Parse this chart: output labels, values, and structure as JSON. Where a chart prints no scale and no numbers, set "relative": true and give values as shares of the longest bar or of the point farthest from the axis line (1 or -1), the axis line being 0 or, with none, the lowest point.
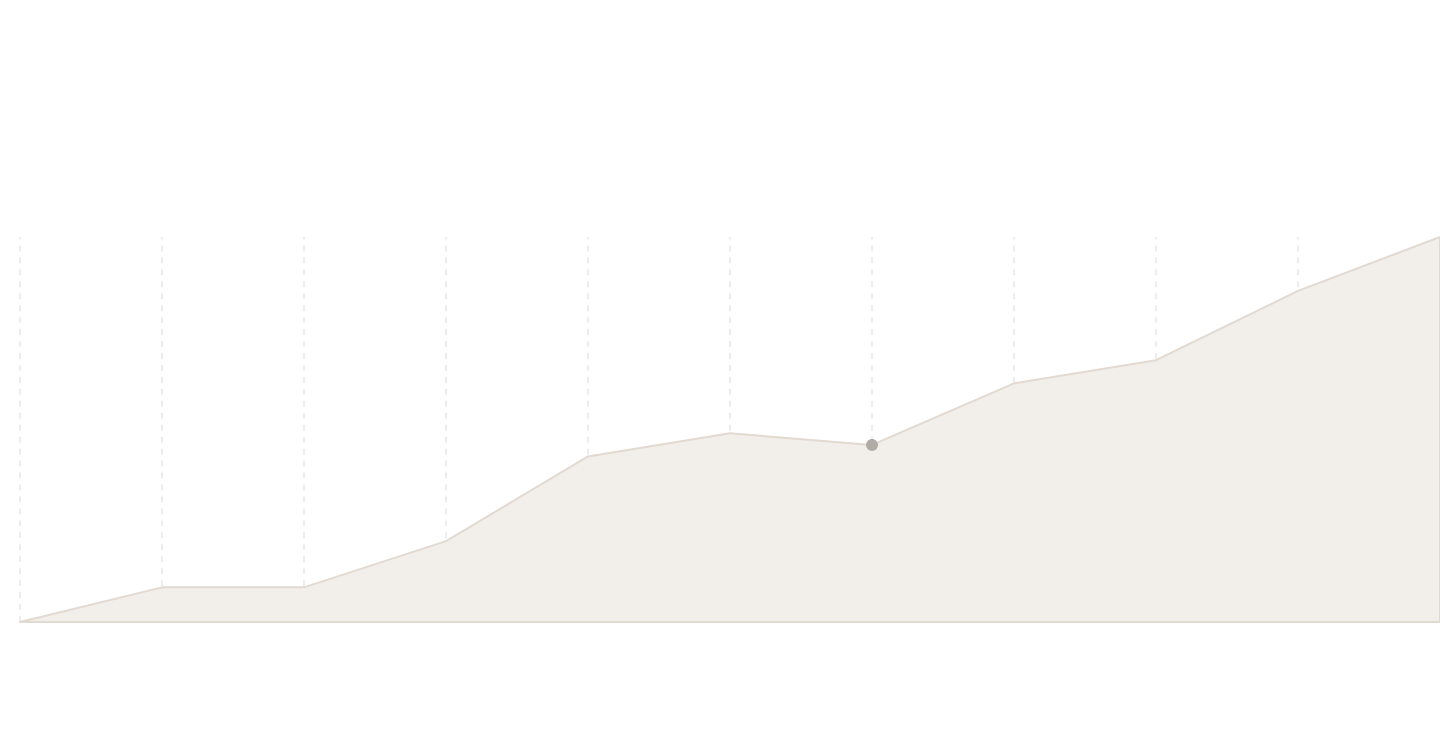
{
  "chart_data": {
    "type": "area",
    "relative": true,
    "grid": "x",
    "categories": [
      null,
      null,
      null,
      null,
      null,
      null,
      null,
      null,
      null,
      null,
      null
    ],
    "series": [
      {
        "color": "#e2d9d0",
        "values": [
          0,
          0.09,
          0.09,
          0.21,
          0.43,
          0.49,
          0.46,
          0.62,
          0.68,
          0.86,
          1.0
        ]
      }
    ]
  }
}
